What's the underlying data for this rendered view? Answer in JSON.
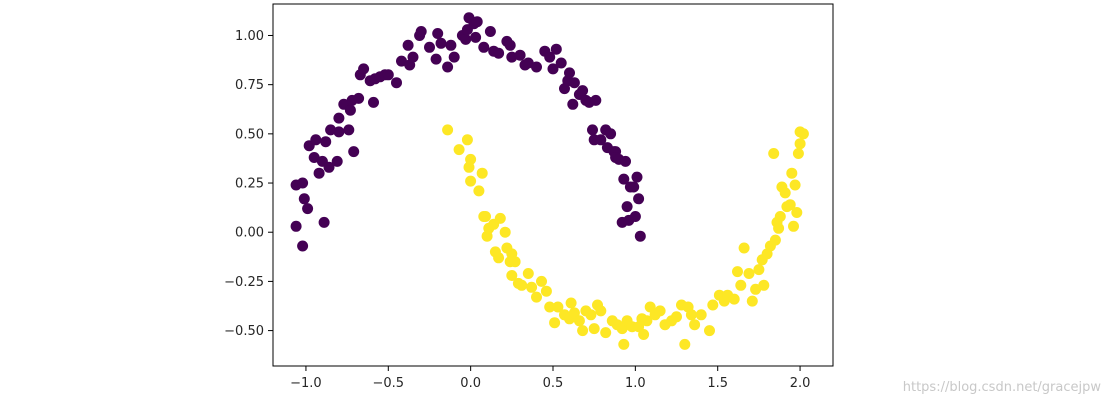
{
  "watermark": "https://blog.csdn.net/gracejpw",
  "chart_data": {
    "type": "scatter",
    "title": "",
    "xlabel": "",
    "ylabel": "",
    "xlim": [
      -1.2,
      2.2
    ],
    "ylim": [
      -0.68,
      1.16
    ],
    "grid": false,
    "legend": "none",
    "xticks": [
      {
        "value": -1.0,
        "label": "−1.0"
      },
      {
        "value": -0.5,
        "label": "−0.5"
      },
      {
        "value": 0.0,
        "label": "0.0"
      },
      {
        "value": 0.5,
        "label": "0.5"
      },
      {
        "value": 1.0,
        "label": "1.0"
      },
      {
        "value": 1.5,
        "label": "1.5"
      },
      {
        "value": 2.0,
        "label": "2.0"
      }
    ],
    "yticks": [
      {
        "value": -0.5,
        "label": "−0.50"
      },
      {
        "value": -0.25,
        "label": "−0.25"
      },
      {
        "value": 0.0,
        "label": "0.00"
      },
      {
        "value": 0.25,
        "label": "0.25"
      },
      {
        "value": 0.5,
        "label": "0.50"
      },
      {
        "value": 0.75,
        "label": "0.75"
      },
      {
        "value": 1.0,
        "label": "1.00"
      }
    ],
    "series": [
      {
        "color": "#440154",
        "points": [
          [
            -1.06,
            0.24
          ],
          [
            -1.02,
            0.25
          ],
          [
            -1.06,
            0.03
          ],
          [
            -1.02,
            -0.07
          ],
          [
            -1.01,
            0.17
          ],
          [
            -0.99,
            0.12
          ],
          [
            -0.98,
            0.44
          ],
          [
            -0.95,
            0.38
          ],
          [
            -0.94,
            0.47
          ],
          [
            -0.92,
            0.3
          ],
          [
            -0.9,
            0.36
          ],
          [
            -0.89,
            0.05
          ],
          [
            -0.88,
            0.46
          ],
          [
            -0.86,
            0.33
          ],
          [
            -0.85,
            0.52
          ],
          [
            -0.81,
            0.36
          ],
          [
            -0.8,
            0.51
          ],
          [
            -0.8,
            0.58
          ],
          [
            -0.77,
            0.65
          ],
          [
            -0.74,
            0.52
          ],
          [
            -0.73,
            0.62
          ],
          [
            -0.72,
            0.67
          ],
          [
            -0.71,
            0.41
          ],
          [
            -0.68,
            0.68
          ],
          [
            -0.67,
            0.8
          ],
          [
            -0.65,
            0.83
          ],
          [
            -0.61,
            0.77
          ],
          [
            -0.59,
            0.66
          ],
          [
            -0.58,
            0.78
          ],
          [
            -0.55,
            0.79
          ],
          [
            -0.52,
            0.8
          ],
          [
            -0.5,
            0.8
          ],
          [
            -0.45,
            0.76
          ],
          [
            -0.42,
            0.87
          ],
          [
            -0.38,
            0.95
          ],
          [
            -0.37,
            0.85
          ],
          [
            -0.35,
            0.89
          ],
          [
            -0.31,
            1.0
          ],
          [
            -0.3,
            1.02
          ],
          [
            -0.25,
            0.94
          ],
          [
            -0.21,
            0.88
          ],
          [
            -0.2,
            1.01
          ],
          [
            -0.18,
            0.96
          ],
          [
            -0.14,
            0.84
          ],
          [
            -0.12,
            0.95
          ],
          [
            -0.1,
            0.89
          ],
          [
            -0.05,
            1.0
          ],
          [
            -0.03,
            0.98
          ],
          [
            -0.02,
            1.03
          ],
          [
            -0.01,
            1.09
          ],
          [
            0.02,
            1.06
          ],
          [
            0.03,
            0.99
          ],
          [
            0.04,
            1.07
          ],
          [
            0.08,
            0.94
          ],
          [
            0.12,
            1.02
          ],
          [
            0.14,
            0.92
          ],
          [
            0.17,
            0.91
          ],
          [
            0.22,
            0.97
          ],
          [
            0.24,
            0.95
          ],
          [
            0.25,
            0.89
          ],
          [
            0.3,
            0.9
          ],
          [
            0.33,
            0.85
          ],
          [
            0.35,
            0.86
          ],
          [
            0.4,
            0.84
          ],
          [
            0.45,
            0.92
          ],
          [
            0.48,
            0.89
          ],
          [
            0.5,
            0.83
          ],
          [
            0.52,
            0.93
          ],
          [
            0.55,
            0.86
          ],
          [
            0.57,
            0.73
          ],
          [
            0.59,
            0.77
          ],
          [
            0.6,
            0.81
          ],
          [
            0.62,
            0.65
          ],
          [
            0.63,
            0.76
          ],
          [
            0.66,
            0.7
          ],
          [
            0.68,
            0.72
          ],
          [
            0.7,
            0.67
          ],
          [
            0.72,
            0.66
          ],
          [
            0.74,
            0.52
          ],
          [
            0.75,
            0.47
          ],
          [
            0.76,
            0.67
          ],
          [
            0.79,
            0.47
          ],
          [
            0.82,
            0.52
          ],
          [
            0.83,
            0.43
          ],
          [
            0.85,
            0.5
          ],
          [
            0.87,
            0.41
          ],
          [
            0.88,
            0.41
          ],
          [
            0.88,
            0.38
          ],
          [
            0.9,
            0.37
          ],
          [
            0.92,
            0.05
          ],
          [
            0.93,
            0.27
          ],
          [
            0.94,
            0.36
          ],
          [
            0.95,
            0.13
          ],
          [
            0.96,
            0.06
          ],
          [
            0.97,
            0.23
          ],
          [
            0.99,
            0.23
          ],
          [
            1.0,
            0.08
          ],
          [
            1.01,
            0.28
          ],
          [
            1.02,
            0.17
          ],
          [
            1.03,
            -0.02
          ]
        ]
      },
      {
        "color": "#fde725",
        "points": [
          [
            -0.14,
            0.52
          ],
          [
            -0.07,
            0.42
          ],
          [
            -0.02,
            0.47
          ],
          [
            -0.01,
            0.33
          ],
          [
            0.0,
            0.37
          ],
          [
            0.0,
            0.26
          ],
          [
            0.05,
            0.21
          ],
          [
            0.07,
            0.3
          ],
          [
            0.08,
            0.08
          ],
          [
            0.09,
            0.08
          ],
          [
            0.1,
            -0.02
          ],
          [
            0.11,
            0.02
          ],
          [
            0.14,
            0.04
          ],
          [
            0.15,
            -0.1
          ],
          [
            0.17,
            -0.13
          ],
          [
            0.18,
            0.07
          ],
          [
            0.21,
            0.0
          ],
          [
            0.22,
            -0.08
          ],
          [
            0.24,
            -0.15
          ],
          [
            0.25,
            -0.11
          ],
          [
            0.25,
            -0.22
          ],
          [
            0.27,
            -0.15
          ],
          [
            0.29,
            -0.26
          ],
          [
            0.31,
            -0.27
          ],
          [
            0.35,
            -0.21
          ],
          [
            0.37,
            -0.28
          ],
          [
            0.4,
            -0.33
          ],
          [
            0.43,
            -0.25
          ],
          [
            0.46,
            -0.3
          ],
          [
            0.48,
            -0.38
          ],
          [
            0.51,
            -0.46
          ],
          [
            0.53,
            -0.38
          ],
          [
            0.57,
            -0.42
          ],
          [
            0.6,
            -0.44
          ],
          [
            0.61,
            -0.36
          ],
          [
            0.63,
            -0.41
          ],
          [
            0.66,
            -0.45
          ],
          [
            0.68,
            -0.5
          ],
          [
            0.7,
            -0.4
          ],
          [
            0.73,
            -0.42
          ],
          [
            0.75,
            -0.49
          ],
          [
            0.77,
            -0.37
          ],
          [
            0.79,
            -0.4
          ],
          [
            0.82,
            -0.51
          ],
          [
            0.86,
            -0.45
          ],
          [
            0.89,
            -0.47
          ],
          [
            0.92,
            -0.49
          ],
          [
            0.93,
            -0.57
          ],
          [
            0.95,
            -0.45
          ],
          [
            0.98,
            -0.48
          ],
          [
            1.02,
            -0.48
          ],
          [
            1.04,
            -0.44
          ],
          [
            1.05,
            -0.52
          ],
          [
            1.07,
            -0.45
          ],
          [
            1.09,
            -0.38
          ],
          [
            1.12,
            -0.42
          ],
          [
            1.15,
            -0.4
          ],
          [
            1.18,
            -0.47
          ],
          [
            1.22,
            -0.45
          ],
          [
            1.25,
            -0.43
          ],
          [
            1.28,
            -0.37
          ],
          [
            1.3,
            -0.57
          ],
          [
            1.32,
            -0.38
          ],
          [
            1.34,
            -0.42
          ],
          [
            1.36,
            -0.47
          ],
          [
            1.4,
            -0.42
          ],
          [
            1.45,
            -0.5
          ],
          [
            1.47,
            -0.37
          ],
          [
            1.51,
            -0.32
          ],
          [
            1.54,
            -0.35
          ],
          [
            1.56,
            -0.32
          ],
          [
            1.6,
            -0.34
          ],
          [
            1.62,
            -0.2
          ],
          [
            1.64,
            -0.27
          ],
          [
            1.66,
            -0.08
          ],
          [
            1.69,
            -0.21
          ],
          [
            1.71,
            -0.35
          ],
          [
            1.73,
            -0.29
          ],
          [
            1.75,
            -0.19
          ],
          [
            1.77,
            -0.14
          ],
          [
            1.78,
            -0.27
          ],
          [
            1.8,
            -0.11
          ],
          [
            1.82,
            -0.07
          ],
          [
            1.84,
            0.4
          ],
          [
            1.85,
            -0.04
          ],
          [
            1.86,
            0.05
          ],
          [
            1.87,
            0.02
          ],
          [
            1.88,
            0.08
          ],
          [
            1.89,
            0.23
          ],
          [
            1.91,
            0.2
          ],
          [
            1.92,
            0.13
          ],
          [
            1.94,
            0.14
          ],
          [
            1.95,
            0.3
          ],
          [
            1.96,
            0.03
          ],
          [
            1.97,
            0.24
          ],
          [
            1.98,
            0.1
          ],
          [
            1.99,
            0.4
          ],
          [
            2.0,
            0.45
          ],
          [
            2.0,
            0.51
          ],
          [
            2.02,
            0.5
          ]
        ]
      }
    ]
  }
}
